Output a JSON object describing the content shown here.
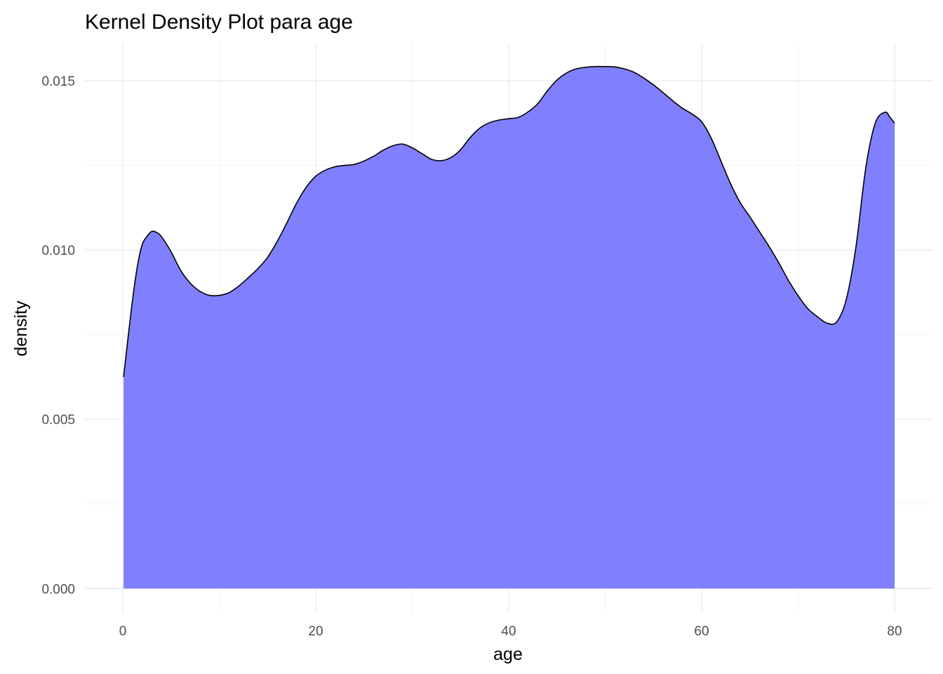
{
  "chart_data": {
    "type": "area",
    "title": "Kernel Density Plot para age",
    "xlabel": "age",
    "ylabel": "density",
    "xlim": [
      -4,
      84
    ],
    "ylim": [
      -0.0007,
      0.0161
    ],
    "x_ticks": [
      0,
      20,
      40,
      60,
      80
    ],
    "x_tick_labels": [
      "0",
      "20",
      "40",
      "60",
      "80"
    ],
    "y_ticks": [
      0,
      0.005,
      0.01,
      0.015
    ],
    "y_tick_labels": [
      "0.000",
      "0.005",
      "0.010",
      "0.015"
    ],
    "grid": true,
    "fill_color": "#8080ff",
    "line_color": "#000000",
    "series": [
      {
        "x": [
          0.08,
          0.5,
          1,
          1.5,
          2,
          2.5,
          3,
          3.5,
          4,
          5,
          6,
          7,
          8,
          9,
          10,
          11,
          12,
          13,
          14,
          15,
          16,
          17,
          18,
          19,
          20,
          21,
          22,
          23,
          24,
          25,
          26,
          27,
          28,
          29,
          30,
          31,
          32,
          33,
          34,
          35,
          36,
          37,
          38,
          39,
          40,
          41,
          42,
          43,
          44,
          45,
          46,
          47,
          48,
          49,
          50,
          51,
          52,
          53,
          54,
          55,
          56,
          57,
          58,
          59,
          60,
          61,
          62,
          63,
          64,
          65,
          66,
          67,
          68,
          69,
          70,
          71,
          72,
          73,
          74,
          75,
          76,
          77,
          78,
          79,
          79.5,
          80
        ],
        "y": [
          0.00625,
          0.0073,
          0.0085,
          0.0095,
          0.01015,
          0.0104,
          0.01055,
          0.01052,
          0.0104,
          0.00995,
          0.0094,
          0.00902,
          0.00878,
          0.00866,
          0.00866,
          0.00874,
          0.00893,
          0.00918,
          0.00945,
          0.00978,
          0.01025,
          0.0108,
          0.01138,
          0.01185,
          0.01218,
          0.01236,
          0.01246,
          0.0125,
          0.01253,
          0.01263,
          0.01277,
          0.01295,
          0.01308,
          0.01313,
          0.01302,
          0.01285,
          0.01268,
          0.01264,
          0.01273,
          0.01296,
          0.01332,
          0.0136,
          0.01376,
          0.01384,
          0.01388,
          0.01392,
          0.01408,
          0.01432,
          0.0147,
          0.01502,
          0.01523,
          0.01535,
          0.0154,
          0.01542,
          0.01542,
          0.01541,
          0.01535,
          0.01525,
          0.01508,
          0.01488,
          0.01465,
          0.01441,
          0.01419,
          0.01402,
          0.01379,
          0.0133,
          0.01263,
          0.01196,
          0.0114,
          0.01098,
          0.01054,
          0.0101,
          0.00962,
          0.0091,
          0.00865,
          0.00827,
          0.00803,
          0.00784,
          0.00788,
          0.00855,
          0.0101,
          0.0124,
          0.01375,
          0.01407,
          0.01393,
          0.01375
        ]
      }
    ]
  }
}
